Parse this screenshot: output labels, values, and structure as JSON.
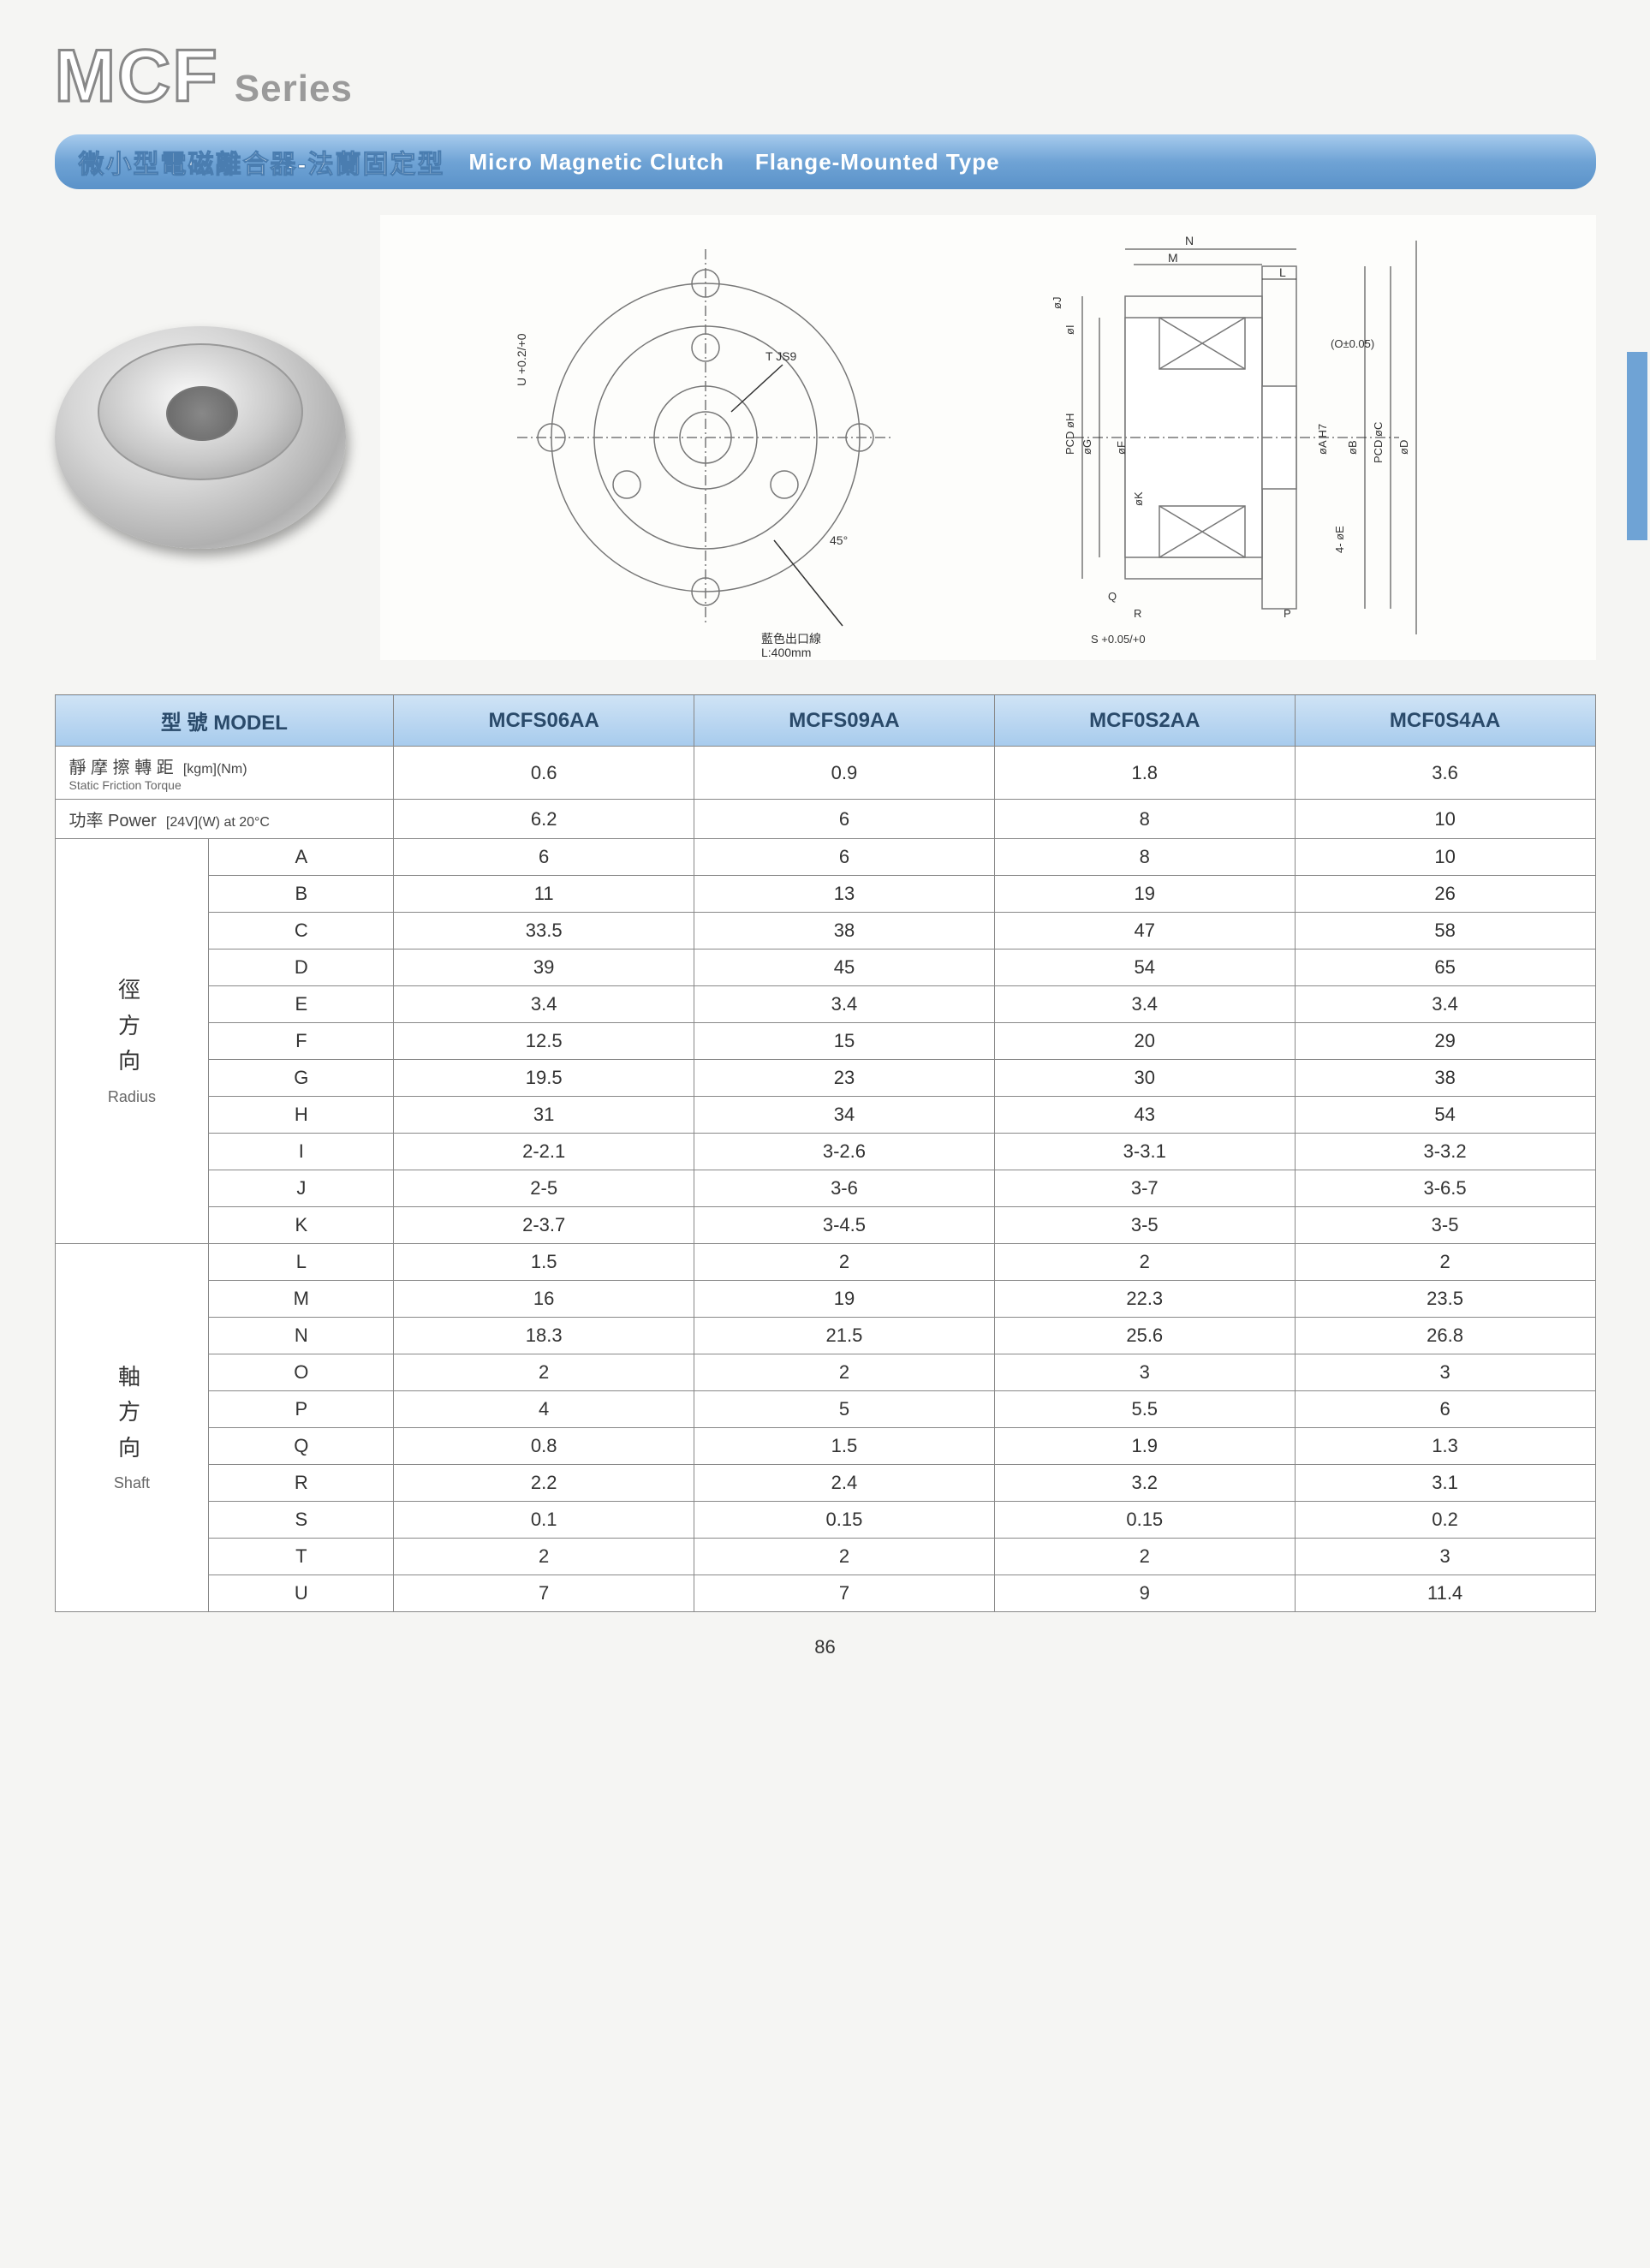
{
  "title": {
    "main": "MCF",
    "sub": "Series"
  },
  "banner": {
    "cn": "微小型電磁離合器-法蘭固定型",
    "en1": "Micro Magnetic Clutch",
    "en2": "Flange-Mounted Type"
  },
  "drawing_labels": {
    "u_tol": "U +0.2 / +0",
    "t": "T JS9",
    "angle": "45°",
    "wire": "藍色出口線",
    "wire_len": "L:400mm",
    "dims": [
      "N",
      "M",
      "L",
      "øJ",
      "øI",
      "PCD øH",
      "øG",
      "øF",
      "øK",
      "øA H7",
      "øB",
      "PCD øC",
      "øD",
      "4- øE",
      "Q",
      "R",
      "S +0.05 / +0",
      "P",
      "(O±0.05)"
    ]
  },
  "table": {
    "header_model": "型 號 MODEL",
    "models": [
      "MCFS06AA",
      "MCFS09AA",
      "MCF0S2AA",
      "MCF0S4AA"
    ],
    "static_torque": {
      "label_cn": "靜 摩 擦 轉 距",
      "label_en": "Static Friction Torque",
      "unit": "[kgm](Nm)",
      "values": [
        "0.6",
        "0.9",
        "1.8",
        "3.6"
      ]
    },
    "power": {
      "label_cn": "功率 Power",
      "unit": "[24V](W) at 20°C",
      "values": [
        "6.2",
        "6",
        "8",
        "10"
      ]
    },
    "radius": {
      "group_cn": "徑方向",
      "group_en": "Radius",
      "rows": [
        {
          "k": "A",
          "v": [
            "6",
            "6",
            "8",
            "10"
          ]
        },
        {
          "k": "B",
          "v": [
            "11",
            "13",
            "19",
            "26"
          ]
        },
        {
          "k": "C",
          "v": [
            "33.5",
            "38",
            "47",
            "58"
          ]
        },
        {
          "k": "D",
          "v": [
            "39",
            "45",
            "54",
            "65"
          ]
        },
        {
          "k": "E",
          "v": [
            "3.4",
            "3.4",
            "3.4",
            "3.4"
          ]
        },
        {
          "k": "F",
          "v": [
            "12.5",
            "15",
            "20",
            "29"
          ]
        },
        {
          "k": "G",
          "v": [
            "19.5",
            "23",
            "30",
            "38"
          ]
        },
        {
          "k": "H",
          "v": [
            "31",
            "34",
            "43",
            "54"
          ]
        },
        {
          "k": "I",
          "v": [
            "2-2.1",
            "3-2.6",
            "3-3.1",
            "3-3.2"
          ]
        },
        {
          "k": "J",
          "v": [
            "2-5",
            "3-6",
            "3-7",
            "3-6.5"
          ]
        },
        {
          "k": "K",
          "v": [
            "2-3.7",
            "3-4.5",
            "3-5",
            "3-5"
          ]
        }
      ]
    },
    "shaft": {
      "group_cn": "軸方向",
      "group_en": "Shaft",
      "rows": [
        {
          "k": "L",
          "v": [
            "1.5",
            "2",
            "2",
            "2"
          ]
        },
        {
          "k": "M",
          "v": [
            "16",
            "19",
            "22.3",
            "23.5"
          ]
        },
        {
          "k": "N",
          "v": [
            "18.3",
            "21.5",
            "25.6",
            "26.8"
          ]
        },
        {
          "k": "O",
          "v": [
            "2",
            "2",
            "3",
            "3"
          ]
        },
        {
          "k": "P",
          "v": [
            "4",
            "5",
            "5.5",
            "6"
          ]
        },
        {
          "k": "Q",
          "v": [
            "0.8",
            "1.5",
            "1.9",
            "1.3"
          ]
        },
        {
          "k": "R",
          "v": [
            "2.2",
            "2.4",
            "3.2",
            "3.1"
          ]
        },
        {
          "k": "S",
          "v": [
            "0.1",
            "0.15",
            "0.15",
            "0.2"
          ]
        },
        {
          "k": "T",
          "v": [
            "2",
            "2",
            "2",
            "3"
          ]
        },
        {
          "k": "U",
          "v": [
            "7",
            "7",
            "9",
            "11.4"
          ]
        }
      ]
    }
  },
  "page_number": "86",
  "colors": {
    "banner_top": "#a7cbed",
    "banner_bottom": "#5a92c9",
    "header_bg": "#cfe3f5",
    "border": "#888888",
    "side_tab": "#6fa3d5",
    "text": "#333333"
  }
}
